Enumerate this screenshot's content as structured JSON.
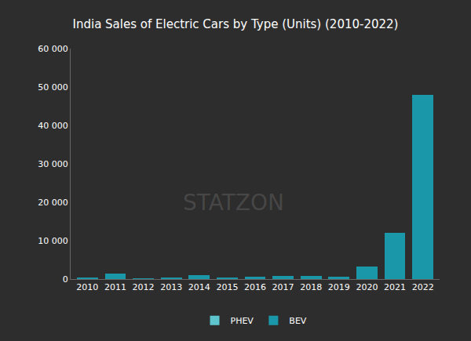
{
  "chart_data": {
    "type": "bar",
    "title": "India Sales of Electric Cars by Type (Units) (2010-2022)",
    "categories": [
      "2010",
      "2011",
      "2012",
      "2013",
      "2014",
      "2015",
      "2016",
      "2017",
      "2018",
      "2019",
      "2020",
      "2021",
      "2022"
    ],
    "series": [
      {
        "name": "BEV",
        "color": "#1a97a8",
        "values": [
          400,
          1400,
          200,
          400,
          1000,
          400,
          700,
          900,
          900,
          700,
          3200,
          12000,
          48000
        ]
      },
      {
        "name": "PHEV",
        "color": "#5ec5cf",
        "values": [
          0,
          0,
          0,
          0,
          0,
          0,
          0,
          0,
          0,
          0,
          0,
          0,
          0
        ]
      }
    ],
    "stacked": true,
    "ylim": [
      0,
      60000
    ],
    "yticks": [
      0,
      {
        "value": 10000,
        "label": "10 000"
      },
      {
        "value": 20000,
        "label": "20 000"
      },
      {
        "value": 30000,
        "label": "30 000"
      },
      {
        "value": 40000,
        "label": "40 000"
      },
      {
        "value": 50000,
        "label": "50 000"
      },
      {
        "value": 60000,
        "label": "60 000"
      }
    ],
    "grid": false,
    "legend": "bottom",
    "annotations": [
      {
        "text": "STATZON"
      }
    ]
  }
}
